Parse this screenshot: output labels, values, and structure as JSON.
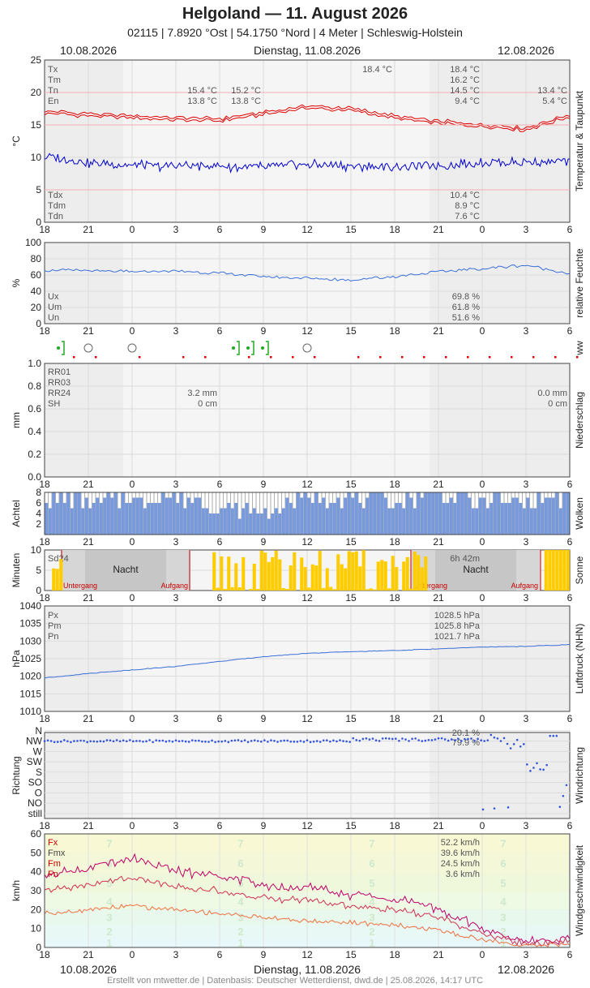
{
  "header": {
    "title": "Helgoland  —  11. August 2026",
    "subtitle": "02115  |  7.8920 °Ost  |  54.1750 °Nord  |  4 Meter  |  Schleswig-Holstein",
    "date_left": "10.08.2026",
    "date_center": "Dienstag, 11.08.2026",
    "date_right": "12.08.2026"
  },
  "footer": "Erstellt von mtwetter.de | Datenbasis: Deutscher Wetterdienst, dwd.de | 25.08.2026, 14:17 UTC",
  "x_ticks": [
    "18",
    "21",
    "0",
    "3",
    "6",
    "9",
    "12",
    "15",
    "18",
    "21",
    "0",
    "3",
    "6"
  ],
  "colors": {
    "temp": "#e00000",
    "dew": "#0000cc",
    "humidity": "#3a6fd8",
    "pressure": "#3a6fd8",
    "sun": "#ffcc00",
    "clouds": "#7799dd",
    "wind_dir": "#3355dd",
    "fx": "#c0006a",
    "fmx": "#d03050",
    "fm": "#f07040"
  },
  "panels": {
    "temperature": {
      "ylabel": "°C",
      "side_label": "Temperatur & Taupunkt",
      "ylim": [
        0,
        25
      ],
      "yticks": [
        "0",
        "5",
        "10",
        "15",
        "20",
        "25"
      ],
      "legend_top": [
        "Tx",
        "Tm",
        "Tn",
        "En"
      ],
      "legend_bottom": [
        "Tdx",
        "Tdm",
        "Tdn"
      ],
      "values_day1_tn": "15.4 °C",
      "values_day1_en": "13.8 °C",
      "values_day2_tn_col2": "15.2 °C",
      "values_day2_en_col2": "13.8 °C",
      "values_day2_tx_col1": "18.4 °C",
      "values_day2_tx": "18.4 °C",
      "values_day2_tm": "16.2 °C",
      "values_day2_tn": "14.5 °C",
      "values_day2_en": "9.4 °C",
      "values_day3_tn": "13.4 °C",
      "values_day3_en": "5.4 °C",
      "tdx": "10.4 °C",
      "tdm": "8.9 °C",
      "tdn": "7.6 °C"
    },
    "humidity": {
      "ylabel": "%",
      "side_label": "relative Feuchte",
      "ylim": [
        0,
        100
      ],
      "yticks": [
        "0",
        "20",
        "40",
        "60",
        "80",
        "100"
      ],
      "legend": [
        "Ux",
        "Um",
        "Un"
      ],
      "ux": "69.8 %",
      "um": "61.8 %",
      "un": "51.6 %"
    },
    "ww": {
      "side_label": "ww"
    },
    "precip": {
      "ylabel": "mm",
      "side_label": "Niederschlag",
      "ylim": [
        0,
        1.0
      ],
      "yticks": [
        "0.0",
        "0.2",
        "0.4",
        "0.6",
        "0.8",
        "1.0"
      ],
      "legend": [
        "RR01",
        "RR03",
        "RR24",
        "SH"
      ],
      "day1_rr24": "3.2 mm",
      "day1_sh": "0 cm",
      "day2_rr24": "0.0 mm",
      "day2_sh": "0 cm"
    },
    "clouds": {
      "ylabel": "Achtel",
      "side_label": "Wolken",
      "ylim": [
        0,
        8
      ],
      "yticks": [
        "2",
        "4",
        "6",
        "8"
      ]
    },
    "sun": {
      "ylabel": "Minuten",
      "side_label": "Sonne",
      "ylim": [
        0,
        10
      ],
      "yticks": [
        "0",
        "5",
        "10"
      ],
      "legend": "Sd24",
      "day2_total": "6h 42m",
      "night": "Nacht",
      "sunset": "Untergang",
      "sunrise": "Aufgang"
    },
    "pressure": {
      "ylabel": "hPa",
      "side_label": "Luftdruck (NHN)",
      "ylim": [
        1010,
        1040
      ],
      "yticks": [
        "1010",
        "1015",
        "1020",
        "1025",
        "1030",
        "1035",
        "1040"
      ],
      "legend": [
        "Px",
        "Pm",
        "Pn"
      ],
      "px": "1028.5 hPa",
      "pm": "1025.8 hPa",
      "pn": "1021.7 hPa"
    },
    "wind_dir": {
      "ylabel": "Richtung",
      "side_label": "Windrichtung",
      "yticks": [
        "still",
        "NO",
        "O",
        "SO",
        "S",
        "SW",
        "W",
        "NW",
        "N"
      ],
      "stat1": "20.1 %",
      "stat2": "79.9 %"
    },
    "wind_speed": {
      "ylabel": "km/h",
      "side_label": "Windgeschwindigkeit",
      "ylim": [
        0,
        60
      ],
      "yticks": [
        "0",
        "10",
        "20",
        "30",
        "40",
        "50",
        "60"
      ],
      "legend": [
        "Fx",
        "Fmx",
        "Fm",
        "Fn"
      ],
      "fx": "52.2 km/h",
      "fmx": "39.6 km/h",
      "fm": "24.5 km/h",
      "fn": "3.6 km/h",
      "beaufort": [
        "1",
        "2",
        "3",
        "4",
        "5",
        "6",
        "7"
      ]
    }
  },
  "chart_data": [
    {
      "type": "line",
      "title": "Temperatur & Taupunkt",
      "ylabel": "°C",
      "ylim": [
        0,
        25
      ],
      "x": [
        "18",
        "21",
        "0",
        "3",
        "6",
        "9",
        "12",
        "15",
        "18",
        "21",
        "0",
        "3",
        "6"
      ],
      "series": [
        {
          "name": "Tm",
          "values": [
            16.8,
            16.4,
            16.0,
            15.8,
            15.6,
            16.6,
            17.6,
            17.2,
            16.0,
            15.2,
            14.8,
            14.2,
            16.3
          ]
        },
        {
          "name": "Tdm",
          "values": [
            10.2,
            9.2,
            8.7,
            8.7,
            8.6,
            8.5,
            8.9,
            8.7,
            8.5,
            8.8,
            9.2,
            9.3,
            9.4
          ]
        }
      ]
    },
    {
      "type": "line",
      "title": "relative Feuchte",
      "ylabel": "%",
      "ylim": [
        0,
        100
      ],
      "x": [
        "18",
        "21",
        "0",
        "3",
        "6",
        "9",
        "12",
        "15",
        "18",
        "21",
        "0",
        "3",
        "6"
      ],
      "series": [
        {
          "name": "rF",
          "values": [
            66,
            65,
            64,
            65,
            62,
            58,
            56,
            54,
            58,
            64,
            68,
            72,
            62
          ]
        }
      ]
    },
    {
      "type": "bar",
      "title": "Wolken",
      "ylabel": "Achtel",
      "ylim": [
        0,
        8
      ],
      "x": [
        "18",
        "21",
        "0",
        "3",
        "6",
        "9",
        "12",
        "15",
        "18",
        "21",
        "0",
        "3",
        "6"
      ],
      "values": [
        7,
        6,
        7,
        7,
        5,
        4,
        7,
        7,
        6,
        8,
        6,
        6,
        7
      ]
    },
    {
      "type": "bar",
      "title": "Sonne",
      "ylabel": "Minuten",
      "ylim": [
        0,
        10
      ],
      "x": [
        "18",
        "21",
        "0",
        "3",
        "6",
        "9",
        "12",
        "15",
        "18",
        "21",
        "0",
        "3",
        "6"
      ],
      "values": [
        4,
        0,
        0,
        0,
        4,
        6,
        7,
        6,
        0,
        0,
        0,
        0,
        10
      ]
    },
    {
      "type": "line",
      "title": "Luftdruck (NHN)",
      "ylabel": "hPa",
      "ylim": [
        1010,
        1040
      ],
      "x": [
        "18",
        "21",
        "0",
        "3",
        "6",
        "9",
        "12",
        "15",
        "18",
        "21",
        "0",
        "3",
        "6"
      ],
      "series": [
        {
          "name": "p",
          "values": [
            1019.5,
            1020.8,
            1021.8,
            1022.8,
            1024.2,
            1025.6,
            1026.5,
            1027.0,
            1027.3,
            1027.8,
            1028.3,
            1028.5,
            1029.0
          ]
        }
      ]
    },
    {
      "type": "scatter",
      "title": "Windrichtung",
      "ylabel": "Richtung",
      "x": [
        "18",
        "21",
        "0",
        "3",
        "6",
        "9",
        "12",
        "15",
        "18",
        "21",
        "0",
        "3",
        "6"
      ],
      "series": [
        {
          "name": "dd",
          "values": [
            "NW",
            "NW",
            "NW",
            "NW",
            "NW",
            "NW",
            "NW",
            "NW",
            "NW",
            "NW",
            "N",
            "SW",
            "still"
          ]
        }
      ]
    },
    {
      "type": "line",
      "title": "Windgeschwindigkeit",
      "ylabel": "km/h",
      "ylim": [
        0,
        60
      ],
      "x": [
        "18",
        "21",
        "0",
        "3",
        "6",
        "9",
        "12",
        "15",
        "18",
        "21",
        "0",
        "3",
        "6"
      ],
      "series": [
        {
          "name": "Fx",
          "values": [
            39,
            42,
            48,
            40,
            38,
            33,
            32,
            28,
            26,
            20,
            10,
            3,
            4
          ]
        },
        {
          "name": "Fmx",
          "values": [
            30,
            33,
            37,
            32,
            30,
            26,
            25,
            22,
            20,
            16,
            7,
            2,
            3
          ]
        },
        {
          "name": "Fm",
          "values": [
            18,
            20,
            22,
            20,
            18,
            16,
            14,
            13,
            12,
            9,
            4,
            1,
            2
          ]
        }
      ]
    }
  ]
}
